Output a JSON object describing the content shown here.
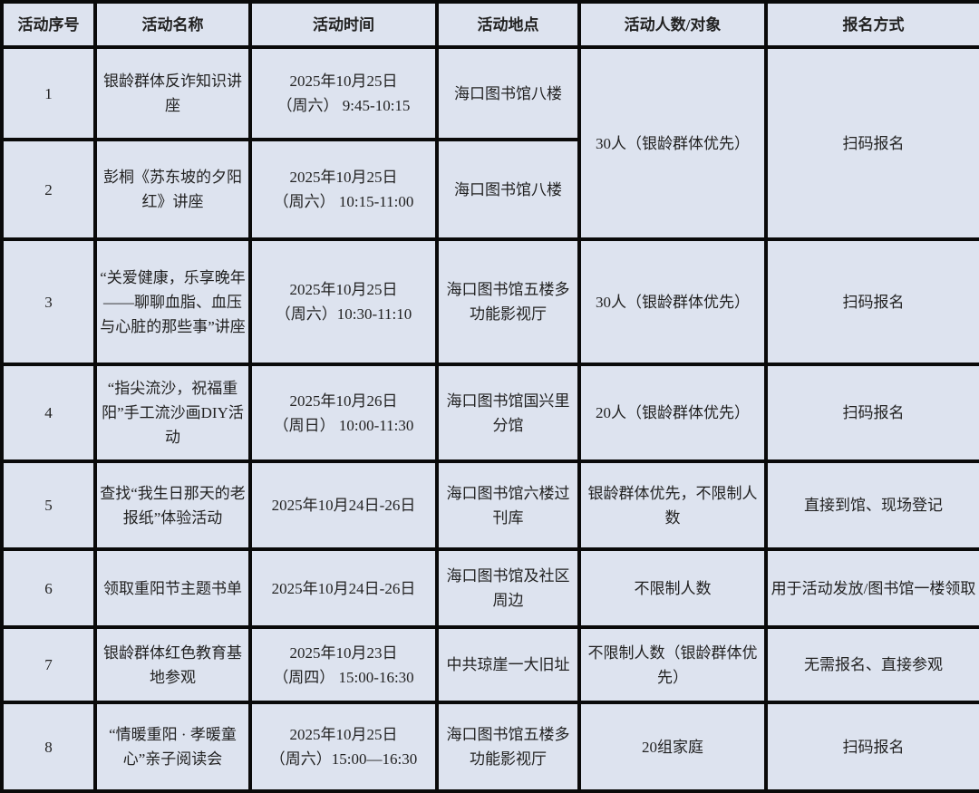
{
  "headers": [
    "活动序号",
    "活动名称",
    "活动时间",
    "活动地点",
    "活动人数/对象",
    "报名方式"
  ],
  "rows": [
    {
      "no": "1",
      "name": "银龄群体反诈知识讲座",
      "time_date": "2025年10月25日",
      "time_slot": "（周六） 9:45-10:15",
      "place": "海口图书馆八楼",
      "people": "30人（银龄群体优先）",
      "signup": "扫码报名"
    },
    {
      "no": "2",
      "name": "彭桐《苏东坡的夕阳红》讲座",
      "time_date": "2025年10月25日",
      "time_slot": "（周六） 10:15-11:00",
      "place": "海口图书馆八楼"
    },
    {
      "no": "3",
      "name": "“关爱健康，乐享晚年——聊聊血脂、血压与心脏的那些事”讲座",
      "time_date": "2025年10月25日",
      "time_slot": "（周六）10:30-11:10",
      "place": "海口图书馆五楼多功能影视厅",
      "people": "30人（银龄群体优先）",
      "signup": "扫码报名"
    },
    {
      "no": "4",
      "name": "“指尖流沙，祝福重阳”手工流沙画DIY活动",
      "time_date": "2025年10月26日",
      "time_slot": "（周日） 10:00-11:30",
      "place": "海口图书馆国兴里分馆",
      "people": "20人（银龄群体优先）",
      "signup": "扫码报名"
    },
    {
      "no": "5",
      "name": "查找“我生日那天的老报纸”体验活动",
      "time_date": "2025年10月24日-26日",
      "time_slot": "",
      "place": "海口图书馆六楼过刊库",
      "people": "银龄群体优先，不限制人数",
      "signup": "直接到馆、现场登记"
    },
    {
      "no": "6",
      "name": "领取重阳节主题书单",
      "time_date": "2025年10月24日-26日",
      "time_slot": "",
      "place": "海口图书馆及社区周边",
      "people": "不限制人数",
      "signup": "用于活动发放/图书馆一楼领取"
    },
    {
      "no": "7",
      "name": "银龄群体红色教育基地参观",
      "time_date": "2025年10月23日",
      "time_slot": "（周四） 15:00-16:30",
      "place": "中共琼崖一大旧址",
      "people": "不限制人数（银龄群体优先）",
      "signup": "无需报名、直接参观"
    },
    {
      "no": "8",
      "name": "“情暖重阳 · 孝暖童心”亲子阅读会",
      "time_date": "2025年10月25日",
      "time_slot": "（周六）15:00—16:30",
      "place": "海口图书馆五楼多功能影视厅",
      "people": "20组家庭",
      "signup": "扫码报名"
    }
  ],
  "colors": {
    "cell_bg": "#dde3ef",
    "border": "#0a0a0a"
  }
}
